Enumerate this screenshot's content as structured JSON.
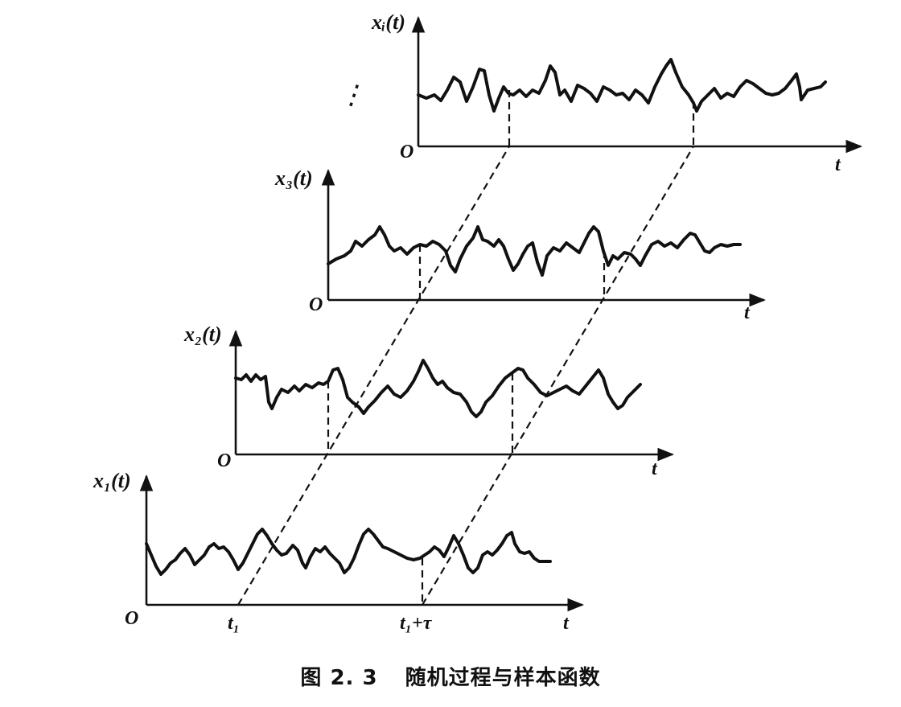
{
  "figure": {
    "caption_number": "图 2. 3",
    "caption_title": "随机过程与样本函数",
    "origin_label": "O",
    "time_label": "t",
    "ellipsis": "⋮",
    "samples": [
      {
        "ylabel": "xᵢ(t)"
      },
      {
        "ylabel": "x₃(t)"
      },
      {
        "ylabel": "x₂(t)"
      },
      {
        "ylabel": "x₁(t)"
      }
    ],
    "tick_t1": "t₁",
    "tick_t1_tau": "t₁+τ"
  }
}
